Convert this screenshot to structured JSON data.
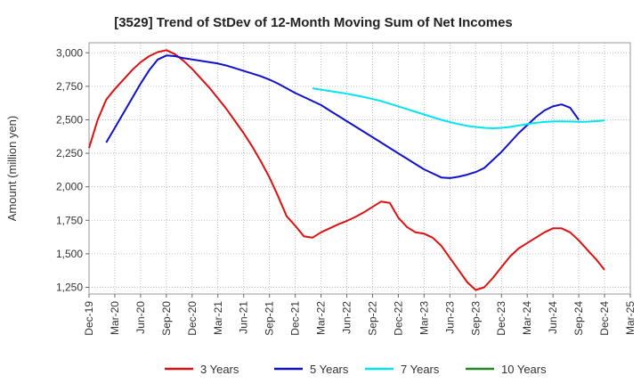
{
  "chart_data": {
    "type": "line",
    "title": "[3529]  Trend of StDev of 12-Month Moving Sum of Net Incomes",
    "xlabel": "",
    "ylabel": "Amount (million yen)",
    "ylim": [
      1200,
      3075
    ],
    "yticks": [
      3000,
      2750,
      2500,
      2250,
      2000,
      1750,
      1500,
      1250
    ],
    "ytick_labels": [
      "3,000",
      "2,750",
      "2,500",
      "2,250",
      "2,000",
      "1,750",
      "1,500",
      "1,250"
    ],
    "xlim": [
      "2019-12",
      "2025-03"
    ],
    "xtick_labels": [
      "Dec-19",
      "Mar-20",
      "Jun-20",
      "Sep-20",
      "Dec-20",
      "Mar-21",
      "Jun-21",
      "Sep-21",
      "Dec-21",
      "Mar-22",
      "Jun-22",
      "Sep-22",
      "Dec-22",
      "Mar-23",
      "Jun-23",
      "Sep-23",
      "Dec-23",
      "Mar-24",
      "Jun-24",
      "Sep-24",
      "Dec-24",
      "Mar-25"
    ],
    "grid": true,
    "legend_position": "bottom",
    "series": [
      {
        "name": "3 Years",
        "color": "#dd1111",
        "points": [
          [
            "2019-12",
            2290
          ],
          [
            "2020-01",
            2500
          ],
          [
            "2020-02",
            2650
          ],
          [
            "2020-03",
            2730
          ],
          [
            "2020-04",
            2800
          ],
          [
            "2020-05",
            2870
          ],
          [
            "2020-06",
            2930
          ],
          [
            "2020-07",
            2975
          ],
          [
            "2020-08",
            3005
          ],
          [
            "2020-09",
            3020
          ],
          [
            "2020-10",
            2990
          ],
          [
            "2020-11",
            2940
          ],
          [
            "2020-12",
            2880
          ],
          [
            "2021-01",
            2810
          ],
          [
            "2021-02",
            2740
          ],
          [
            "2021-03",
            2660
          ],
          [
            "2021-04",
            2580
          ],
          [
            "2021-05",
            2490
          ],
          [
            "2021-06",
            2400
          ],
          [
            "2021-07",
            2300
          ],
          [
            "2021-08",
            2190
          ],
          [
            "2021-09",
            2070
          ],
          [
            "2021-10",
            1930
          ],
          [
            "2021-11",
            1780
          ],
          [
            "2021-12",
            1710
          ],
          [
            "2022-01",
            1630
          ],
          [
            "2022-02",
            1620
          ],
          [
            "2022-03",
            1660
          ],
          [
            "2022-04",
            1690
          ],
          [
            "2022-05",
            1720
          ],
          [
            "2022-06",
            1745
          ],
          [
            "2022-07",
            1775
          ],
          [
            "2022-08",
            1810
          ],
          [
            "2022-09",
            1850
          ],
          [
            "2022-10",
            1890
          ],
          [
            "2022-11",
            1880
          ],
          [
            "2022-12",
            1770
          ],
          [
            "2023-01",
            1700
          ],
          [
            "2023-02",
            1660
          ],
          [
            "2023-03",
            1650
          ],
          [
            "2023-04",
            1620
          ],
          [
            "2023-05",
            1560
          ],
          [
            "2023-06",
            1470
          ],
          [
            "2023-07",
            1380
          ],
          [
            "2023-08",
            1290
          ],
          [
            "2023-09",
            1230
          ],
          [
            "2023-10",
            1250
          ],
          [
            "2023-11",
            1320
          ],
          [
            "2023-12",
            1400
          ],
          [
            "2024-01",
            1480
          ],
          [
            "2024-02",
            1540
          ],
          [
            "2024-03",
            1580
          ],
          [
            "2024-04",
            1620
          ],
          [
            "2024-05",
            1660
          ],
          [
            "2024-06",
            1690
          ],
          [
            "2024-07",
            1690
          ],
          [
            "2024-08",
            1660
          ],
          [
            "2024-09",
            1600
          ],
          [
            "2024-10",
            1530
          ],
          [
            "2024-11",
            1460
          ],
          [
            "2024-12",
            1380
          ]
        ]
      },
      {
        "name": "5 Years",
        "color": "#1111cc",
        "points": [
          [
            "2020-02",
            2330
          ],
          [
            "2020-03",
            2440
          ],
          [
            "2020-04",
            2550
          ],
          [
            "2020-05",
            2660
          ],
          [
            "2020-06",
            2770
          ],
          [
            "2020-07",
            2870
          ],
          [
            "2020-08",
            2950
          ],
          [
            "2020-09",
            2980
          ],
          [
            "2020-10",
            2975
          ],
          [
            "2020-11",
            2960
          ],
          [
            "2020-12",
            2950
          ],
          [
            "2021-01",
            2940
          ],
          [
            "2021-02",
            2930
          ],
          [
            "2021-03",
            2920
          ],
          [
            "2021-04",
            2905
          ],
          [
            "2021-05",
            2885
          ],
          [
            "2021-06",
            2865
          ],
          [
            "2021-07",
            2845
          ],
          [
            "2021-08",
            2825
          ],
          [
            "2021-09",
            2800
          ],
          [
            "2021-10",
            2770
          ],
          [
            "2021-11",
            2735
          ],
          [
            "2021-12",
            2700
          ],
          [
            "2022-01",
            2670
          ],
          [
            "2022-02",
            2640
          ],
          [
            "2022-03",
            2610
          ],
          [
            "2022-04",
            2570
          ],
          [
            "2022-05",
            2530
          ],
          [
            "2022-06",
            2490
          ],
          [
            "2022-07",
            2450
          ],
          [
            "2022-08",
            2410
          ],
          [
            "2022-09",
            2370
          ],
          [
            "2022-10",
            2330
          ],
          [
            "2022-11",
            2290
          ],
          [
            "2022-12",
            2250
          ],
          [
            "2023-01",
            2210
          ],
          [
            "2023-02",
            2170
          ],
          [
            "2023-03",
            2130
          ],
          [
            "2023-04",
            2100
          ],
          [
            "2023-05",
            2070
          ],
          [
            "2023-06",
            2065
          ],
          [
            "2023-07",
            2075
          ],
          [
            "2023-08",
            2090
          ],
          [
            "2023-09",
            2110
          ],
          [
            "2023-10",
            2140
          ],
          [
            "2023-11",
            2200
          ],
          [
            "2023-12",
            2260
          ],
          [
            "2024-01",
            2330
          ],
          [
            "2024-02",
            2400
          ],
          [
            "2024-03",
            2460
          ],
          [
            "2024-04",
            2520
          ],
          [
            "2024-05",
            2570
          ],
          [
            "2024-06",
            2600
          ],
          [
            "2024-07",
            2615
          ],
          [
            "2024-08",
            2590
          ],
          [
            "2024-09",
            2500
          ]
        ]
      },
      {
        "name": "7 Years",
        "color": "#00e5ee",
        "points": [
          [
            "2022-02",
            2735
          ],
          [
            "2022-03",
            2725
          ],
          [
            "2022-04",
            2715
          ],
          [
            "2022-05",
            2705
          ],
          [
            "2022-06",
            2695
          ],
          [
            "2022-07",
            2683
          ],
          [
            "2022-08",
            2670
          ],
          [
            "2022-09",
            2655
          ],
          [
            "2022-10",
            2640
          ],
          [
            "2022-11",
            2620
          ],
          [
            "2022-12",
            2600
          ],
          [
            "2023-01",
            2580
          ],
          [
            "2023-02",
            2560
          ],
          [
            "2023-03",
            2540
          ],
          [
            "2023-04",
            2520
          ],
          [
            "2023-05",
            2500
          ],
          [
            "2023-06",
            2483
          ],
          [
            "2023-07",
            2468
          ],
          [
            "2023-08",
            2455
          ],
          [
            "2023-09",
            2447
          ],
          [
            "2023-10",
            2440
          ],
          [
            "2023-11",
            2437
          ],
          [
            "2023-12",
            2440
          ],
          [
            "2024-01",
            2447
          ],
          [
            "2024-02",
            2457
          ],
          [
            "2024-03",
            2467
          ],
          [
            "2024-04",
            2477
          ],
          [
            "2024-05",
            2484
          ],
          [
            "2024-06",
            2487
          ],
          [
            "2024-07",
            2488
          ],
          [
            "2024-08",
            2487
          ],
          [
            "2024-09",
            2485
          ],
          [
            "2024-10",
            2486
          ],
          [
            "2024-11",
            2490
          ],
          [
            "2024-12",
            2495
          ]
        ]
      },
      {
        "name": "10 Years",
        "color": "#228822",
        "points": []
      }
    ]
  }
}
